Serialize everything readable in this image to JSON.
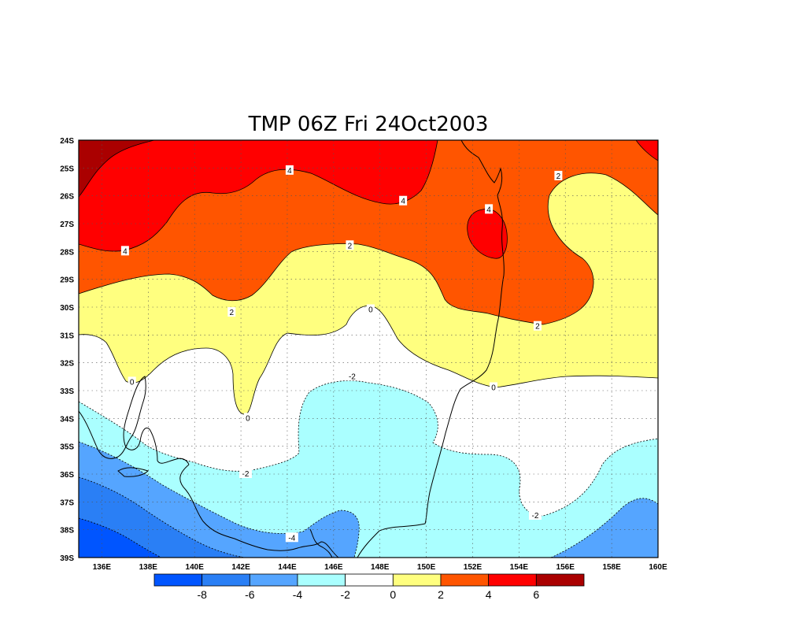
{
  "title": "TMP 06Z Fri 24Oct2003",
  "chart_data": {
    "type": "heatmap",
    "title": "TMP 06Z Fri 24Oct2003",
    "variable": "TMP",
    "valid_time": "06Z Fri 24Oct2003",
    "lon_range": [
      135,
      160
    ],
    "lat_range": [
      -39,
      -24
    ],
    "x_ticks": [
      "136E",
      "138E",
      "140E",
      "142E",
      "144E",
      "146E",
      "148E",
      "150E",
      "152E",
      "154E",
      "156E",
      "158E",
      "160E"
    ],
    "y_ticks": [
      "24S",
      "25S",
      "26S",
      "27S",
      "28S",
      "29S",
      "30S",
      "31S",
      "32S",
      "33S",
      "34S",
      "35S",
      "36S",
      "37S",
      "38S",
      "39S"
    ],
    "grid": true,
    "contour_labels": [
      {
        "text": "4",
        "lon": 144.1,
        "lat": -25.1
      },
      {
        "text": "4",
        "lon": 149.0,
        "lat": -26.2
      },
      {
        "text": "4",
        "lon": 137.0,
        "lat": -28.0
      },
      {
        "text": "4",
        "lon": 152.7,
        "lat": -26.5
      },
      {
        "text": "2",
        "lon": 155.7,
        "lat": -25.3
      },
      {
        "text": "2",
        "lon": 146.7,
        "lat": -27.8
      },
      {
        "text": "2",
        "lon": 141.6,
        "lat": -30.2
      },
      {
        "text": "2",
        "lon": 154.8,
        "lat": -30.7
      },
      {
        "text": "0",
        "lon": 147.6,
        "lat": -30.1
      },
      {
        "text": "0",
        "lon": 137.3,
        "lat": -32.7
      },
      {
        "text": "0",
        "lon": 142.3,
        "lat": -34.0
      },
      {
        "text": "0",
        "lon": 152.9,
        "lat": -32.9
      },
      {
        "text": "-2",
        "lon": 146.8,
        "lat": -32.5
      },
      {
        "text": "-2",
        "lon": 142.2,
        "lat": -36.0
      },
      {
        "text": "-2",
        "lon": 154.7,
        "lat": -37.5
      },
      {
        "text": "-4",
        "lon": 144.2,
        "lat": -38.3
      }
    ],
    "colorbar": {
      "bounds": [
        -8,
        -6,
        -4,
        -2,
        0,
        2,
        4,
        6
      ],
      "tick_labels": [
        "-8",
        "-6",
        "-4",
        "-2",
        "0",
        "2",
        "4",
        "6"
      ],
      "colors": [
        "#0055ff",
        "#2a7ff5",
        "#55a5ff",
        "#aaffff",
        "#ffffff",
        "#ffff7f",
        "#ff5500",
        "#ff0000",
        "#aa0000"
      ]
    }
  }
}
